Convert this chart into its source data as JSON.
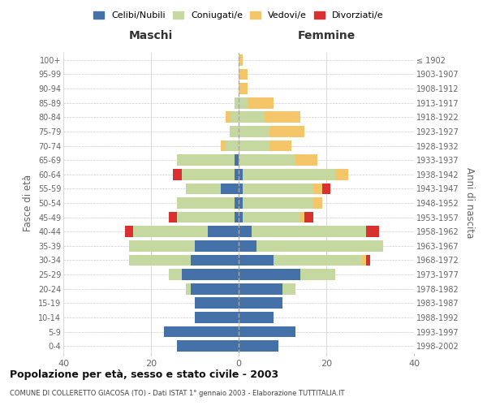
{
  "age_groups": [
    "0-4",
    "5-9",
    "10-14",
    "15-19",
    "20-24",
    "25-29",
    "30-34",
    "35-39",
    "40-44",
    "45-49",
    "50-54",
    "55-59",
    "60-64",
    "65-69",
    "70-74",
    "75-79",
    "80-84",
    "85-89",
    "90-94",
    "95-99",
    "100+"
  ],
  "birth_years": [
    "1998-2002",
    "1993-1997",
    "1988-1992",
    "1983-1987",
    "1978-1982",
    "1973-1977",
    "1968-1972",
    "1963-1967",
    "1958-1962",
    "1953-1957",
    "1948-1952",
    "1943-1947",
    "1938-1942",
    "1933-1937",
    "1928-1932",
    "1923-1927",
    "1918-1922",
    "1913-1917",
    "1908-1912",
    "1903-1907",
    "≤ 1902"
  ],
  "maschi": {
    "celibe": [
      14,
      17,
      10,
      10,
      11,
      13,
      11,
      10,
      7,
      1,
      1,
      4,
      1,
      1,
      0,
      0,
      0,
      0,
      0,
      0,
      0
    ],
    "coniugato": [
      0,
      0,
      0,
      0,
      1,
      3,
      14,
      15,
      17,
      13,
      13,
      8,
      12,
      13,
      3,
      2,
      2,
      1,
      0,
      0,
      0
    ],
    "vedovo": [
      0,
      0,
      0,
      0,
      0,
      0,
      0,
      0,
      0,
      0,
      0,
      0,
      0,
      0,
      1,
      0,
      1,
      0,
      0,
      0,
      0
    ],
    "divorziato": [
      0,
      0,
      0,
      0,
      0,
      0,
      0,
      0,
      2,
      2,
      0,
      0,
      2,
      0,
      0,
      0,
      0,
      0,
      0,
      0,
      0
    ]
  },
  "femmine": {
    "nubile": [
      9,
      13,
      8,
      10,
      10,
      14,
      8,
      4,
      3,
      1,
      1,
      1,
      1,
      0,
      0,
      0,
      0,
      0,
      0,
      0,
      0
    ],
    "coniugata": [
      0,
      0,
      0,
      0,
      3,
      8,
      20,
      29,
      26,
      13,
      16,
      16,
      21,
      13,
      7,
      7,
      6,
      2,
      0,
      0,
      0
    ],
    "vedova": [
      0,
      0,
      0,
      0,
      0,
      0,
      1,
      0,
      0,
      1,
      2,
      2,
      3,
      5,
      5,
      8,
      8,
      6,
      2,
      2,
      1
    ],
    "divorziata": [
      0,
      0,
      0,
      0,
      0,
      0,
      1,
      0,
      3,
      2,
      0,
      2,
      0,
      0,
      0,
      0,
      0,
      0,
      0,
      0,
      0
    ]
  },
  "colors": {
    "celibe": "#4472a8",
    "coniugato": "#c5d8a0",
    "vedovo": "#f5c56a",
    "divorziato": "#d93030"
  },
  "xlim": 40,
  "title": "Popolazione per età, sesso e stato civile - 2003",
  "subtitle": "COMUNE DI COLLERETTO GIACOSA (TO) - Dati ISTAT 1° gennaio 2003 - Elaborazione TUTTITALIA.IT",
  "ylabel": "Fasce di età",
  "ylabel_right": "Anni di nascita",
  "legend_labels": [
    "Celibi/Nubili",
    "Coniugati/e",
    "Vedovi/e",
    "Divorziati/e"
  ],
  "header_maschi": "Maschi",
  "header_femmine": "Femmine",
  "bg_color": "#ffffff",
  "grid_color": "#cccccc",
  "tick_color": "#666666"
}
